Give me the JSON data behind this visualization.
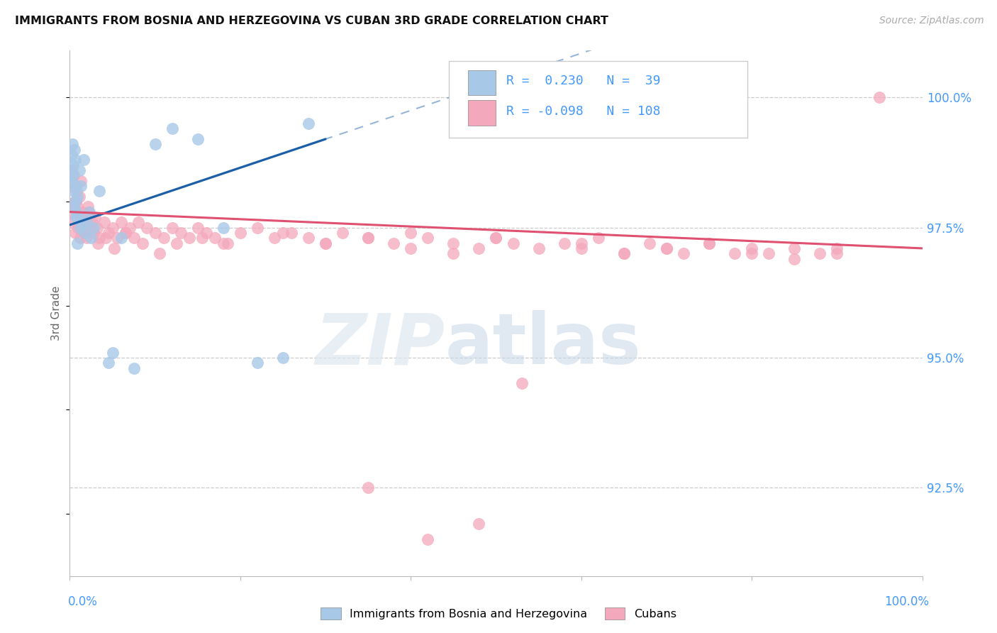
{
  "title": "IMMIGRANTS FROM BOSNIA AND HERZEGOVINA VS CUBAN 3RD GRADE CORRELATION CHART",
  "source": "Source: ZipAtlas.com",
  "ylabel": "3rd Grade",
  "right_yticks": [
    92.5,
    95.0,
    97.5,
    100.0
  ],
  "right_ytick_labels": [
    "92.5%",
    "95.0%",
    "97.5%",
    "100.0%"
  ],
  "xmin": 0.0,
  "xmax": 100.0,
  "ymin": 90.8,
  "ymax": 100.9,
  "legend_R1": " 0.230",
  "legend_N1": " 39",
  "legend_R2": "-0.098",
  "legend_N2": "108",
  "legend_label1": "Immigrants from Bosnia and Herzegovina",
  "legend_label2": "Cubans",
  "blue_color": "#a8c8e8",
  "pink_color": "#f4a8bc",
  "blue_line_color": "#1a5fa8",
  "pink_line_color": "#e05070",
  "label_color": "#4499ff",
  "grid_color": "#cccccc",
  "bosnia_x": [
    0.15,
    0.2,
    0.25,
    0.3,
    0.35,
    0.4,
    0.45,
    0.5,
    0.6,
    0.7,
    0.8,
    0.9,
    1.0,
    1.1,
    1.2,
    1.3,
    1.5,
    1.7,
    2.0,
    2.3,
    2.8,
    3.5,
    4.5,
    6.0,
    7.5,
    10.0,
    12.0,
    15.0,
    18.0,
    22.0,
    25.0,
    28.0,
    0.55,
    0.65,
    0.75,
    0.85,
    1.6,
    2.5,
    5.0
  ],
  "bosnia_y": [
    98.6,
    98.4,
    98.9,
    99.1,
    98.7,
    98.5,
    98.2,
    97.9,
    98.0,
    98.3,
    97.8,
    98.1,
    97.7,
    98.6,
    97.5,
    98.3,
    97.6,
    97.4,
    97.6,
    97.8,
    97.5,
    98.2,
    94.9,
    97.3,
    94.8,
    99.1,
    99.4,
    99.2,
    97.5,
    94.9,
    95.0,
    99.5,
    99.0,
    98.8,
    97.7,
    97.2,
    98.8,
    97.3,
    95.1
  ],
  "cuban_x": [
    0.1,
    0.2,
    0.3,
    0.4,
    0.5,
    0.6,
    0.7,
    0.8,
    0.9,
    1.0,
    1.1,
    1.2,
    1.3,
    1.4,
    1.5,
    1.6,
    1.7,
    1.8,
    1.9,
    2.0,
    2.2,
    2.4,
    2.6,
    2.8,
    3.0,
    3.2,
    3.5,
    4.0,
    4.5,
    5.0,
    5.5,
    6.0,
    6.5,
    7.0,
    7.5,
    8.0,
    9.0,
    10.0,
    11.0,
    12.0,
    13.0,
    14.0,
    15.0,
    16.0,
    17.0,
    18.0,
    20.0,
    22.0,
    24.0,
    26.0,
    28.0,
    30.0,
    32.0,
    35.0,
    38.0,
    40.0,
    42.0,
    45.0,
    48.0,
    50.0,
    52.0,
    55.0,
    58.0,
    60.0,
    62.0,
    65.0,
    68.0,
    70.0,
    72.0,
    75.0,
    78.0,
    80.0,
    82.0,
    85.0,
    88.0,
    90.0,
    0.25,
    0.55,
    0.85,
    1.15,
    2.1,
    3.3,
    4.2,
    5.2,
    6.5,
    8.5,
    10.5,
    12.5,
    15.5,
    18.5,
    25.0,
    30.0,
    35.0,
    40.0,
    45.0,
    50.0,
    60.0,
    65.0,
    70.0,
    75.0,
    80.0,
    85.0,
    90.0,
    95.0,
    35.0,
    42.0,
    48.0,
    53.0
  ],
  "cuban_y": [
    97.9,
    98.3,
    97.6,
    97.8,
    98.5,
    97.4,
    98.0,
    98.2,
    97.7,
    97.5,
    98.1,
    97.3,
    98.4,
    97.6,
    97.8,
    97.4,
    97.6,
    97.5,
    97.7,
    97.3,
    97.8,
    97.5,
    97.6,
    97.4,
    97.7,
    97.5,
    97.3,
    97.6,
    97.4,
    97.5,
    97.3,
    97.6,
    97.4,
    97.5,
    97.3,
    97.6,
    97.5,
    97.4,
    97.3,
    97.5,
    97.4,
    97.3,
    97.5,
    97.4,
    97.3,
    97.2,
    97.4,
    97.5,
    97.3,
    97.4,
    97.3,
    97.2,
    97.4,
    97.3,
    97.2,
    97.4,
    97.3,
    97.2,
    97.1,
    97.3,
    97.2,
    97.1,
    97.2,
    97.1,
    97.3,
    97.0,
    97.2,
    97.1,
    97.0,
    97.2,
    97.0,
    97.1,
    97.0,
    96.9,
    97.0,
    97.1,
    98.6,
    98.0,
    97.9,
    97.6,
    97.9,
    97.2,
    97.3,
    97.1,
    97.4,
    97.2,
    97.0,
    97.2,
    97.3,
    97.2,
    97.4,
    97.2,
    97.3,
    97.1,
    97.0,
    97.3,
    97.2,
    97.0,
    97.1,
    97.2,
    97.0,
    97.1,
    97.0,
    100.0,
    92.5,
    91.5,
    91.8,
    94.5
  ]
}
